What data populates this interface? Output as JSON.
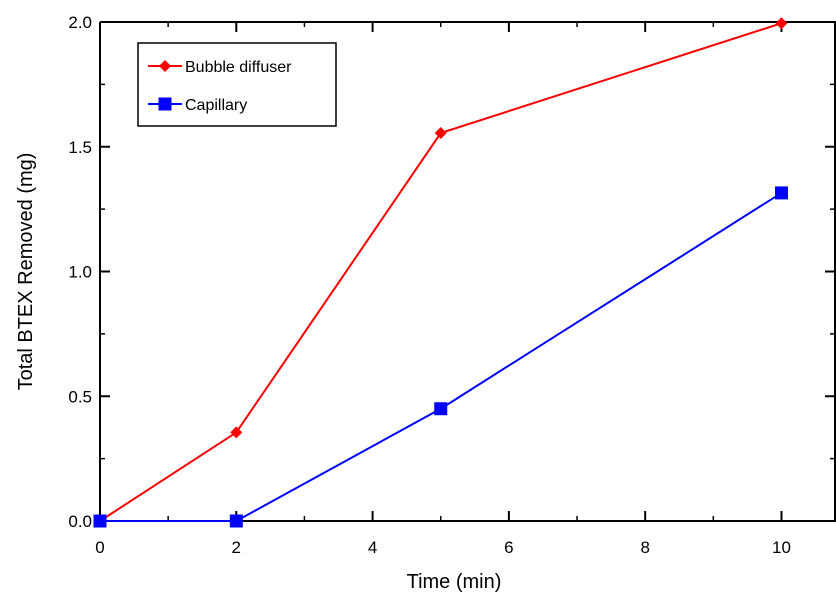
{
  "chart_data": {
    "type": "line",
    "xlabel": "Time (min)",
    "ylabel": "Total BTEX Removed (mg)",
    "xlim": [
      0,
      10.8
    ],
    "ylim": [
      0,
      2.0
    ],
    "xticks": [
      0,
      2,
      4,
      6,
      8,
      10
    ],
    "xtick_labels": [
      "0",
      "2",
      "4",
      "6",
      "8",
      "10"
    ],
    "yticks": [
      0,
      0.5,
      1.0,
      1.5,
      2.0
    ],
    "ytick_labels": [
      "0.0",
      "0.5",
      "1.0",
      "1.5",
      "2.0"
    ],
    "grid": false,
    "legend_position": "top-left",
    "series": [
      {
        "name": "Bubble diffuser",
        "color": "#ff0000",
        "marker": "diamond",
        "x": [
          0,
          2,
          5,
          10
        ],
        "y": [
          0.0,
          0.355,
          1.555,
          1.995
        ]
      },
      {
        "name": "Capillary",
        "color": "#0000ff",
        "marker": "square",
        "x": [
          0,
          2,
          5,
          10
        ],
        "y": [
          0.0,
          0.0,
          0.45,
          1.315
        ]
      }
    ]
  }
}
